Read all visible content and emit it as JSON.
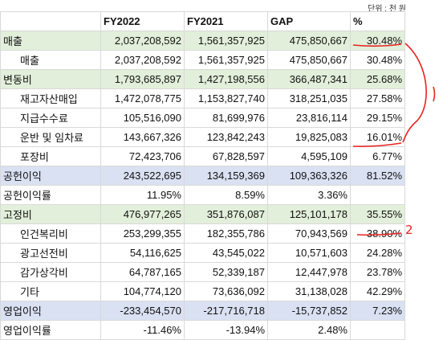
{
  "unit_label": "단위 : 천 원",
  "headers": [
    "",
    "FY2022",
    "FY2021",
    "GAP",
    "%"
  ],
  "rows": [
    {
      "label": "매출",
      "values": [
        "2,037,208,592",
        "1,561,357,925",
        "475,850,667",
        "30.48%"
      ],
      "style": "green",
      "indent": false
    },
    {
      "label": "매출",
      "values": [
        "2,037,208,592",
        "1,561,357,925",
        "475,850,667",
        "30.48%"
      ],
      "style": "plain",
      "indent": true
    },
    {
      "label": "변동비",
      "values": [
        "1,793,685,897",
        "1,427,198,556",
        "366,487,341",
        "25.68%"
      ],
      "style": "green",
      "indent": false
    },
    {
      "label": "재고자산매입",
      "values": [
        "1,472,078,775",
        "1,153,827,740",
        "318,251,035",
        "27.58%"
      ],
      "style": "plain",
      "indent": true
    },
    {
      "label": "지급수수료",
      "values": [
        "105,516,090",
        "81,699,976",
        "23,816,114",
        "29.15%"
      ],
      "style": "plain",
      "indent": true
    },
    {
      "label": "운반 및 임차료",
      "values": [
        "143,667,326",
        "123,842,243",
        "19,825,083",
        "16.01%"
      ],
      "style": "plain",
      "indent": true
    },
    {
      "label": "포장비",
      "values": [
        "72,423,706",
        "67,828,597",
        "4,595,109",
        "6.77%"
      ],
      "style": "plain",
      "indent": true
    },
    {
      "label": "공헌이익",
      "values": [
        "243,522,695",
        "134,159,369",
        "109,363,326",
        "81.52%"
      ],
      "style": "blue",
      "indent": false
    },
    {
      "label": "공헌이익률",
      "values": [
        "11.95%",
        "8.59%",
        "3.36%",
        ""
      ],
      "style": "plain",
      "indent": false
    },
    {
      "label": "고정비",
      "values": [
        "476,977,265",
        "351,876,087",
        "125,101,178",
        "35.55%"
      ],
      "style": "green",
      "indent": false
    },
    {
      "label": "인건복리비",
      "values": [
        "253,299,355",
        "182,355,786",
        "70,943,569",
        "38.90%"
      ],
      "style": "plain",
      "indent": true
    },
    {
      "label": "광고선전비",
      "values": [
        "54,116,625",
        "43,545,022",
        "10,571,603",
        "24.28%"
      ],
      "style": "plain",
      "indent": true
    },
    {
      "label": "감가상각비",
      "values": [
        "64,787,165",
        "52,339,187",
        "12,447,978",
        "23.78%"
      ],
      "style": "plain",
      "indent": true
    },
    {
      "label": "기타",
      "values": [
        "104,774,120",
        "73,636,092",
        "31,138,028",
        "42.29%"
      ],
      "style": "plain",
      "indent": true
    },
    {
      "label": "영업이익",
      "values": [
        "-233,454,570",
        "-217,716,718",
        "-15,737,852",
        "7.23%"
      ],
      "style": "blue",
      "indent": false
    },
    {
      "label": "영업이익률",
      "values": [
        "-11.46%",
        "-13.94%",
        "2.48%",
        ""
      ],
      "style": "plain",
      "indent": false
    }
  ],
  "annotations": {
    "handwritten_1": "1",
    "handwritten_2": "2"
  },
  "annotation_color": "#e8231f"
}
